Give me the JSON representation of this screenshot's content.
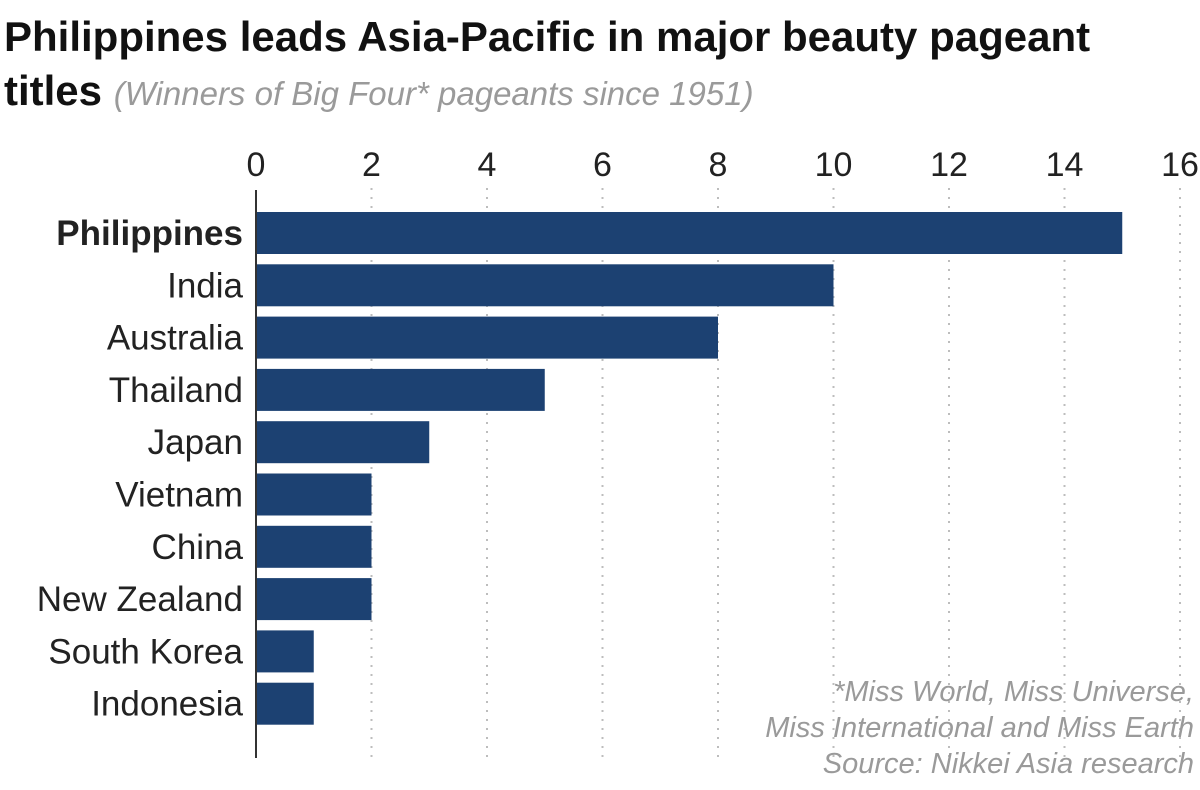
{
  "chart_data": {
    "type": "bar",
    "orientation": "horizontal",
    "title": "Philippines leads Asia-Pacific in major beauty pageant titles",
    "subtitle": "(Winners of Big Four* pageants since 1951)",
    "categories": [
      "Philippines",
      "India",
      "Australia",
      "Thailand",
      "Japan",
      "Vietnam",
      "China",
      "New Zealand",
      "South Korea",
      "Indonesia"
    ],
    "values": [
      15,
      10,
      8,
      5,
      3,
      2,
      2,
      2,
      1,
      1
    ],
    "highlight_category": "Philippines",
    "xlim": [
      0,
      16
    ],
    "xticks": [
      0,
      2,
      4,
      6,
      8,
      10,
      12,
      14,
      16
    ],
    "xaxis_position": "top",
    "grid": "vertical dotted",
    "bar_color": "#1c4172"
  },
  "footnote": {
    "line1": "*Miss World, Miss Universe,",
    "line2": "Miss International and Miss Earth",
    "source": "Source: Nikkei Asia research"
  }
}
